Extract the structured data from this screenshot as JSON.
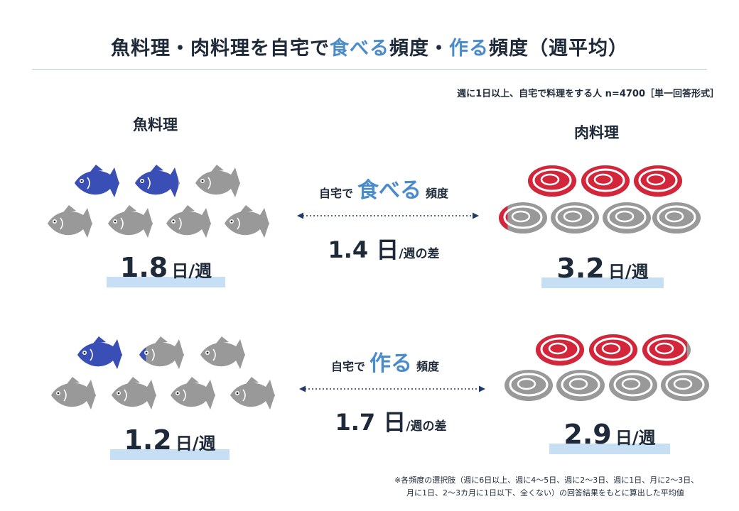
{
  "title": {
    "part1": "魚料理・肉料理を自宅で",
    "eat": "食べる",
    "part2": "頻度・",
    "cook": "作る",
    "part3": "頻度（週平均）"
  },
  "note": "週に1日以上、自宅で料理をする人 n=4700［単一回答形式］",
  "fish_heading": "魚料理",
  "meat_heading": "肉料理",
  "eat_row": {
    "label_pre": "自宅で",
    "label_main": "食べる",
    "label_post": "頻度",
    "fish_value": "1.8",
    "fish_unit": "日/週",
    "meat_value": "3.2",
    "meat_unit": "日/週",
    "diff_value": "1.4 日",
    "diff_unit": "/週の差",
    "fish_count": 1.8,
    "meat_count": 3.2
  },
  "cook_row": {
    "label_pre": "自宅で",
    "label_main": "作る",
    "label_post": "頻度",
    "fish_value": "1.2",
    "fish_unit": "日/週",
    "meat_value": "2.9",
    "meat_unit": "日/週",
    "diff_value": "1.7 日",
    "diff_unit": "/週の差",
    "fish_count": 1.2,
    "meat_count": 2.9
  },
  "colors": {
    "fish_filled": "#3a4fb5",
    "meat_filled": "#d3263a",
    "empty": "#999999",
    "accent": "#4a8ccb",
    "bar": "#c6dff5"
  },
  "footnote": {
    "line1": "※各頻度の選択肢（週に6日以上、週に4～5日、週に2～3日、週に1日、月に2～3日、",
    "line2": "月に1日、2～3カ月に1日以下、全くない）の回答結果をもとに算出した平均値"
  }
}
